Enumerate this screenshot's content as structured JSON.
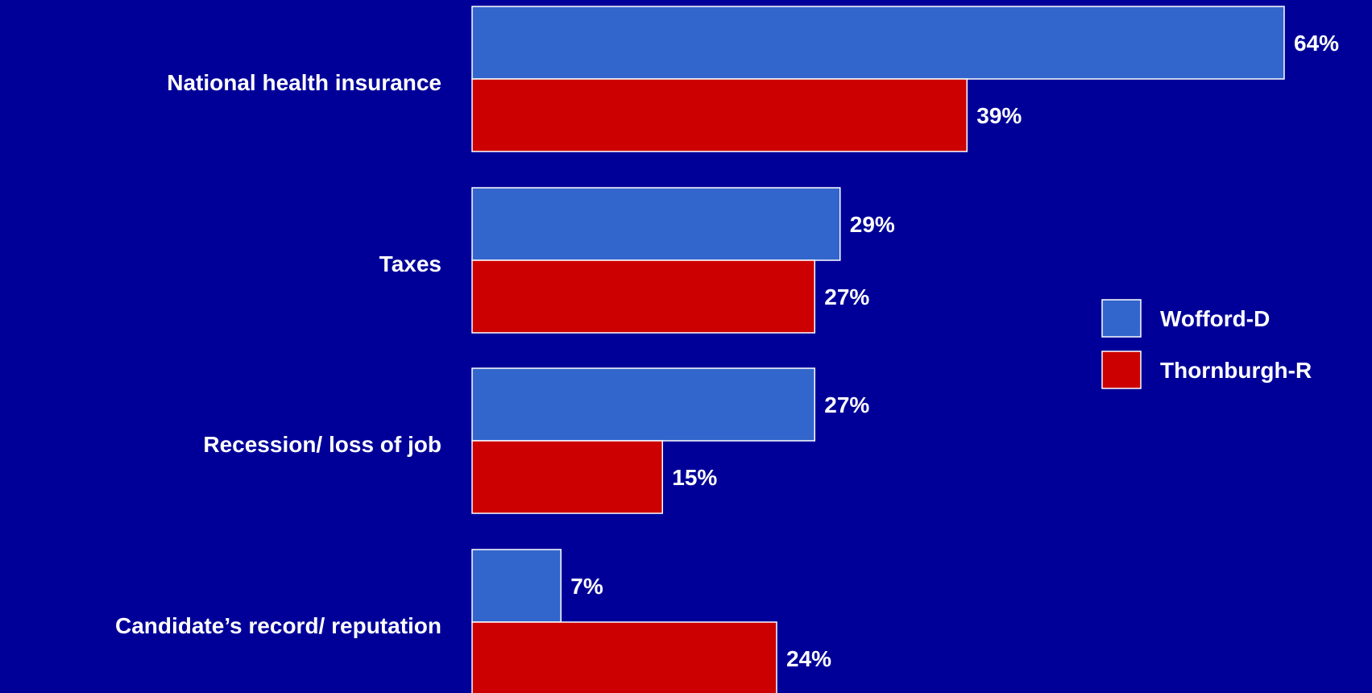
{
  "chart_data": {
    "type": "bar",
    "orientation": "horizontal",
    "categories": [
      "National health insurance",
      "Taxes",
      "Recession/ loss of job",
      "Candidate’s record/ reputation"
    ],
    "series": [
      {
        "name": "Wofford-D",
        "values": [
          64,
          29,
          27,
          7
        ],
        "color": "#3366cc"
      },
      {
        "name": "Thornburgh-R",
        "values": [
          39,
          27,
          15,
          24
        ],
        "color": "#cc0000"
      }
    ],
    "value_labels": [
      [
        "64%",
        "29%",
        "27%",
        "7%"
      ],
      [
        "39%",
        "27%",
        "15%",
        "24%"
      ]
    ],
    "legend_placement": "right",
    "grid": false,
    "background_color": "#000099"
  }
}
